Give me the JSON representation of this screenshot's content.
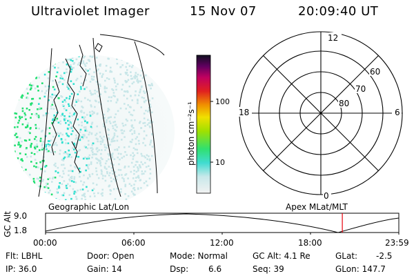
{
  "header": {
    "title": "Ultraviolet Imager",
    "date": "15 Nov 07",
    "time": "20:09:40 UT"
  },
  "colorbar": {
    "label": "photon cm⁻²s⁻¹",
    "ticks": [
      "100",
      "10"
    ]
  },
  "polar_plot": {
    "mlt_labels": {
      "top": "12",
      "left": "18",
      "right": "6",
      "bottom": "0"
    },
    "lat_labels": [
      "60",
      "70",
      "80"
    ]
  },
  "panel_labels": {
    "left": "Geographic Lat/Lon",
    "right": "Apex MLat/MLT"
  },
  "altitude_plot": {
    "ylabel": "GC Alt",
    "ymax": "9.0",
    "ymin": "1.8",
    "x_ticks": [
      "00:00",
      "06:00",
      "12:00",
      "18:00",
      "23:59"
    ],
    "current_time_marker_hours": 20.16
  },
  "status": {
    "flt": "Flt: LBHL",
    "ip": "IP: 36.0",
    "door": "Door: Open",
    "gain": "Gain: 14",
    "mode": "Mode: Normal",
    "dsp_label": "Dsp:",
    "dsp_value": "6.6",
    "gc_alt": "GC Alt: 4.1 Re",
    "seq": "Seq: 39",
    "glat_label": "GLat:",
    "glat_value": "-2.5",
    "glon": "GLon: 147.7"
  },
  "colors": {
    "marker": "#e8000b",
    "aurora_strong": "#20e070",
    "aurora_medium": "#30e0d0",
    "aurora_faint": "#c8e6e8"
  }
}
